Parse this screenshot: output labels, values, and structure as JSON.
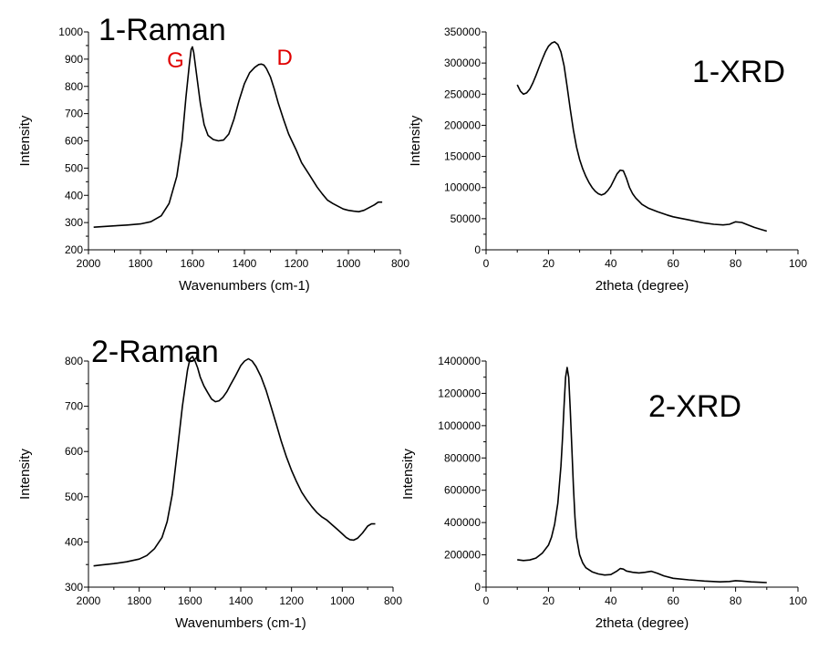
{
  "chart_data": [
    {
      "type": "line",
      "title": "1-Raman",
      "xlabel": "Wavenumbers (cm-1)",
      "ylabel": "Intensity",
      "xlim": [
        2000,
        800
      ],
      "ylim": [
        200,
        1000
      ],
      "xticks": [
        2000,
        1800,
        1600,
        1400,
        1200,
        1000,
        800
      ],
      "yticks": [
        200,
        300,
        400,
        500,
        600,
        700,
        800,
        900,
        1000
      ],
      "annotations": [
        {
          "text": "G",
          "x": 1665,
          "y": 870
        },
        {
          "text": "D",
          "x": 1245,
          "y": 880
        }
      ],
      "series": [
        {
          "x": [
            1980,
            1900,
            1850,
            1800,
            1760,
            1720,
            1690,
            1660,
            1640,
            1625,
            1612,
            1605,
            1600,
            1595,
            1585,
            1570,
            1555,
            1540,
            1520,
            1500,
            1480,
            1460,
            1440,
            1420,
            1400,
            1380,
            1360,
            1345,
            1335,
            1325,
            1315,
            1300,
            1285,
            1270,
            1250,
            1230,
            1200,
            1180,
            1150,
            1120,
            1100,
            1080,
            1060,
            1040,
            1020,
            1000,
            980,
            960,
            940,
            920,
            900,
            885,
            870
          ],
          "y": [
            283,
            288,
            291,
            295,
            303,
            325,
            370,
            470,
            600,
            760,
            880,
            935,
            945,
            925,
            850,
            740,
            660,
            620,
            605,
            600,
            603,
            625,
            680,
            750,
            810,
            850,
            870,
            880,
            882,
            878,
            865,
            835,
            790,
            740,
            680,
            625,
            565,
            520,
            475,
            430,
            405,
            382,
            370,
            360,
            350,
            345,
            342,
            340,
            345,
            355,
            365,
            375,
            375
          ]
        }
      ]
    },
    {
      "type": "line",
      "title": "1-XRD",
      "xlabel": "2theta (degree)",
      "ylabel": "Intensity",
      "xlim": [
        0,
        100
      ],
      "ylim": [
        0,
        350000
      ],
      "xticks": [
        0,
        20,
        40,
        60,
        80,
        100
      ],
      "yticks": [
        0,
        50000,
        100000,
        150000,
        200000,
        250000,
        300000,
        350000
      ],
      "series": [
        {
          "x": [
            10,
            11,
            12,
            13,
            14,
            15,
            16,
            17,
            18,
            19,
            20,
            21,
            22,
            23,
            24,
            25,
            26,
            27,
            28,
            29,
            30,
            31,
            32,
            33,
            34,
            35,
            36,
            37,
            38,
            39,
            40,
            41,
            42,
            43,
            44,
            45,
            46,
            47,
            48,
            49,
            50,
            52,
            55,
            58,
            60,
            62,
            65,
            68,
            70,
            73,
            76,
            78,
            80,
            82,
            84,
            86,
            88,
            90
          ],
          "y": [
            265000,
            255000,
            250000,
            252000,
            258000,
            268000,
            280000,
            293000,
            306000,
            318000,
            327000,
            332000,
            334000,
            330000,
            318000,
            296000,
            262000,
            226000,
            192000,
            165000,
            145000,
            130000,
            118000,
            108000,
            100000,
            94000,
            90000,
            88000,
            90000,
            95000,
            102000,
            112000,
            122000,
            128000,
            127000,
            115000,
            100000,
            90000,
            83000,
            78000,
            73000,
            67000,
            61000,
            56000,
            53000,
            51000,
            48000,
            45000,
            43000,
            41000,
            40000,
            41000,
            45000,
            44000,
            40000,
            36000,
            33000,
            30000
          ]
        }
      ]
    },
    {
      "type": "line",
      "title": "2-Raman",
      "xlabel": "Wavenumbers (cm-1)",
      "ylabel": "Intensity",
      "xlim": [
        2000,
        800
      ],
      "ylim": [
        300,
        800
      ],
      "xticks": [
        2000,
        1800,
        1600,
        1400,
        1200,
        1000,
        800
      ],
      "yticks": [
        300,
        400,
        500,
        600,
        700,
        800
      ],
      "series": [
        {
          "x": [
            1980,
            1950,
            1900,
            1850,
            1800,
            1770,
            1740,
            1710,
            1690,
            1670,
            1650,
            1630,
            1610,
            1600,
            1590,
            1580,
            1570,
            1560,
            1545,
            1530,
            1515,
            1500,
            1485,
            1470,
            1455,
            1440,
            1420,
            1400,
            1385,
            1370,
            1355,
            1340,
            1320,
            1300,
            1280,
            1260,
            1240,
            1220,
            1200,
            1180,
            1160,
            1140,
            1120,
            1100,
            1080,
            1060,
            1040,
            1020,
            1000,
            985,
            970,
            955,
            940,
            920,
            900,
            885,
            870
          ],
          "y": [
            347,
            349,
            352,
            356,
            362,
            370,
            385,
            410,
            445,
            505,
            600,
            700,
            780,
            805,
            810,
            800,
            785,
            765,
            745,
            730,
            716,
            710,
            712,
            720,
            732,
            748,
            768,
            790,
            800,
            805,
            800,
            788,
            765,
            735,
            698,
            660,
            622,
            588,
            558,
            533,
            510,
            493,
            478,
            465,
            455,
            448,
            438,
            428,
            418,
            410,
            405,
            404,
            408,
            420,
            435,
            440,
            440
          ]
        }
      ]
    },
    {
      "type": "line",
      "title": "2-XRD",
      "xlabel": "2theta (degree)",
      "ylabel": "Intensity",
      "xlim": [
        0,
        100
      ],
      "ylim": [
        0,
        1400000
      ],
      "xticks": [
        0,
        20,
        40,
        60,
        80,
        100
      ],
      "yticks": [
        0,
        200000,
        400000,
        600000,
        800000,
        1000000,
        1200000,
        1400000
      ],
      "series": [
        {
          "x": [
            10,
            12,
            14,
            16,
            18,
            20,
            21,
            22,
            23,
            24,
            24.5,
            25,
            25.5,
            26,
            26.5,
            27,
            27.5,
            28,
            28.5,
            29,
            30,
            31,
            32,
            34,
            36,
            38,
            40,
            42,
            43,
            44,
            45,
            47,
            49,
            51,
            53,
            55,
            57,
            60,
            65,
            70,
            75,
            78,
            80,
            82,
            85,
            88,
            90
          ],
          "y": [
            170000,
            165000,
            168000,
            180000,
            210000,
            260000,
            310000,
            390000,
            520000,
            750000,
            920000,
            1120000,
            1300000,
            1360000,
            1300000,
            1100000,
            870000,
            620000,
            430000,
            310000,
            200000,
            150000,
            120000,
            95000,
            82000,
            75000,
            78000,
            100000,
            115000,
            112000,
            100000,
            92000,
            88000,
            92000,
            98000,
            85000,
            70000,
            55000,
            45000,
            38000,
            33000,
            35000,
            40000,
            38000,
            33000,
            30000,
            28000
          ]
        }
      ]
    }
  ]
}
